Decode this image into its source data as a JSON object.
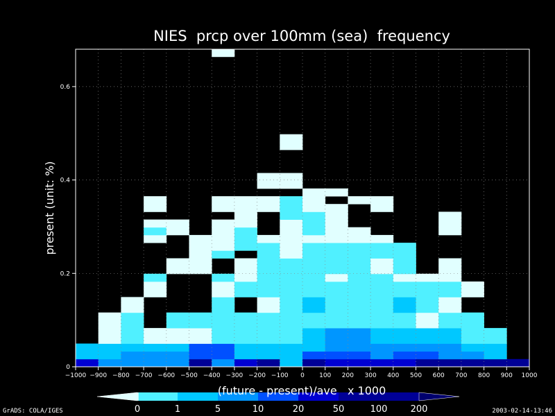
{
  "chart_data": {
    "type": "heatmap",
    "title": "NIES  prcp over 100mm (sea)  frequency",
    "xlabel": "(future - present)/ave   x 1000",
    "ylabel": "present (unit: %)",
    "xlim": [
      -1000,
      1000
    ],
    "ylim": [
      0,
      0.68
    ],
    "x_bin_width": 100,
    "y_bin_width": 0.0166,
    "x_ticks": [
      -1000,
      -900,
      -800,
      -700,
      -600,
      -500,
      -400,
      -300,
      -200,
      -100,
      0,
      100,
      200,
      300,
      400,
      500,
      600,
      700,
      800,
      900,
      1000
    ],
    "y_ticks": [
      0,
      0.2,
      0.4,
      0.6
    ],
    "y_tick_labels": [
      "0",
      "0.2",
      "0.4",
      "0.6"
    ],
    "grid": true,
    "legend": {
      "position": "bottom",
      "boundaries": [
        "0",
        "1",
        "5",
        "10",
        "20",
        "50",
        "100",
        "200"
      ],
      "colors": [
        "#e1ffff",
        "#50f0ff",
        "#00c8ff",
        "#0096ff",
        "#0050ff",
        "#0000d2",
        "#000096",
        "#00006e"
      ]
    },
    "cells": [
      [
        -1000,
        0,
        5
      ],
      [
        -900,
        0,
        3
      ],
      [
        -800,
        0,
        3
      ],
      [
        -700,
        0,
        3
      ],
      [
        -600,
        0,
        3
      ],
      [
        -500,
        0,
        6
      ],
      [
        -400,
        0,
        3
      ],
      [
        -300,
        0,
        5
      ],
      [
        -200,
        0,
        6
      ],
      [
        -100,
        0,
        2
      ],
      [
        0,
        0,
        6
      ],
      [
        100,
        0,
        5
      ],
      [
        200,
        0,
        5
      ],
      [
        300,
        0,
        5
      ],
      [
        400,
        0,
        5
      ],
      [
        500,
        0,
        6
      ],
      [
        600,
        0,
        6
      ],
      [
        700,
        0,
        6
      ],
      [
        800,
        0,
        6
      ],
      [
        900,
        0,
        6
      ],
      [
        -1000,
        1,
        2
      ],
      [
        -900,
        1,
        2
      ],
      [
        -800,
        1,
        3
      ],
      [
        -700,
        1,
        3
      ],
      [
        -600,
        1,
        3
      ],
      [
        -500,
        1,
        4
      ],
      [
        -400,
        1,
        4
      ],
      [
        -300,
        1,
        2
      ],
      [
        -200,
        1,
        2
      ],
      [
        -100,
        1,
        2
      ],
      [
        0,
        1,
        4
      ],
      [
        100,
        1,
        4
      ],
      [
        200,
        1,
        4
      ],
      [
        300,
        1,
        3
      ],
      [
        400,
        1,
        4
      ],
      [
        500,
        1,
        4
      ],
      [
        600,
        1,
        3
      ],
      [
        700,
        1,
        3
      ],
      [
        800,
        1,
        2
      ],
      [
        -1000,
        2,
        2
      ],
      [
        -900,
        2,
        2
      ],
      [
        -800,
        2,
        2
      ],
      [
        -700,
        2,
        2
      ],
      [
        -600,
        2,
        2
      ],
      [
        -500,
        2,
        4
      ],
      [
        -400,
        2,
        4
      ],
      [
        -300,
        2,
        2
      ],
      [
        -200,
        2,
        2
      ],
      [
        -100,
        2,
        2
      ],
      [
        0,
        2,
        2
      ],
      [
        100,
        2,
        3
      ],
      [
        200,
        2,
        3
      ],
      [
        300,
        2,
        3
      ],
      [
        400,
        2,
        3
      ],
      [
        500,
        2,
        3
      ],
      [
        600,
        2,
        3
      ],
      [
        700,
        2,
        2
      ],
      [
        800,
        2,
        2
      ],
      [
        -900,
        3,
        0
      ],
      [
        -800,
        3,
        1
      ],
      [
        -700,
        3,
        0
      ],
      [
        -600,
        3,
        0
      ],
      [
        -500,
        3,
        0
      ],
      [
        -400,
        3,
        1
      ],
      [
        -300,
        3,
        1
      ],
      [
        -200,
        3,
        1
      ],
      [
        -100,
        3,
        1
      ],
      [
        0,
        3,
        2
      ],
      [
        100,
        3,
        3
      ],
      [
        200,
        3,
        3
      ],
      [
        300,
        3,
        2
      ],
      [
        400,
        3,
        2
      ],
      [
        500,
        3,
        2
      ],
      [
        600,
        3,
        2
      ],
      [
        700,
        3,
        1
      ],
      [
        800,
        3,
        1
      ],
      [
        -900,
        4,
        0
      ],
      [
        -800,
        4,
        1
      ],
      [
        -700,
        4,
        0
      ],
      [
        -600,
        4,
        0
      ],
      [
        -500,
        4,
        0
      ],
      [
        -400,
        4,
        1
      ],
      [
        -300,
        4,
        1
      ],
      [
        -200,
        4,
        1
      ],
      [
        -100,
        4,
        1
      ],
      [
        0,
        4,
        2
      ],
      [
        100,
        4,
        3
      ],
      [
        200,
        4,
        3
      ],
      [
        300,
        4,
        2
      ],
      [
        400,
        4,
        2
      ],
      [
        500,
        4,
        2
      ],
      [
        600,
        4,
        2
      ],
      [
        700,
        4,
        1
      ],
      [
        800,
        4,
        1
      ],
      [
        -900,
        5,
        0
      ],
      [
        -800,
        5,
        1
      ],
      [
        -600,
        5,
        1
      ],
      [
        -500,
        5,
        1
      ],
      [
        -400,
        5,
        1
      ],
      [
        -300,
        5,
        1
      ],
      [
        -200,
        5,
        1
      ],
      [
        -100,
        5,
        1
      ],
      [
        0,
        5,
        1
      ],
      [
        100,
        5,
        1
      ],
      [
        200,
        5,
        1
      ],
      [
        300,
        5,
        1
      ],
      [
        400,
        5,
        1
      ],
      [
        500,
        5,
        0
      ],
      [
        600,
        5,
        1
      ],
      [
        700,
        5,
        1
      ],
      [
        -900,
        6,
        0
      ],
      [
        -800,
        6,
        1
      ],
      [
        -600,
        6,
        1
      ],
      [
        -500,
        6,
        1
      ],
      [
        -400,
        6,
        1
      ],
      [
        -300,
        6,
        1
      ],
      [
        -200,
        6,
        1
      ],
      [
        -100,
        6,
        1
      ],
      [
        0,
        6,
        1
      ],
      [
        100,
        6,
        1
      ],
      [
        200,
        6,
        1
      ],
      [
        300,
        6,
        1
      ],
      [
        400,
        6,
        1
      ],
      [
        500,
        6,
        0
      ],
      [
        600,
        6,
        1
      ],
      [
        700,
        6,
        1
      ],
      [
        -800,
        7,
        0
      ],
      [
        -400,
        7,
        1
      ],
      [
        -200,
        7,
        0
      ],
      [
        -100,
        7,
        1
      ],
      [
        0,
        7,
        2
      ],
      [
        100,
        7,
        1
      ],
      [
        200,
        7,
        1
      ],
      [
        300,
        7,
        1
      ],
      [
        400,
        7,
        2
      ],
      [
        500,
        7,
        1
      ],
      [
        600,
        7,
        0
      ],
      [
        -800,
        8,
        0
      ],
      [
        -400,
        8,
        1
      ],
      [
        -200,
        8,
        0
      ],
      [
        -100,
        8,
        1
      ],
      [
        0,
        8,
        2
      ],
      [
        100,
        8,
        1
      ],
      [
        200,
        8,
        1
      ],
      [
        300,
        8,
        1
      ],
      [
        400,
        8,
        2
      ],
      [
        500,
        8,
        1
      ],
      [
        600,
        8,
        0
      ],
      [
        -700,
        9,
        0
      ],
      [
        -400,
        9,
        0
      ],
      [
        -300,
        9,
        1
      ],
      [
        -200,
        9,
        1
      ],
      [
        -100,
        9,
        1
      ],
      [
        0,
        9,
        1
      ],
      [
        100,
        9,
        1
      ],
      [
        200,
        9,
        1
      ],
      [
        300,
        9,
        1
      ],
      [
        400,
        9,
        1
      ],
      [
        500,
        9,
        1
      ],
      [
        600,
        9,
        1
      ],
      [
        700,
        9,
        0
      ],
      [
        -700,
        10,
        0
      ],
      [
        -400,
        10,
        0
      ],
      [
        -300,
        10,
        1
      ],
      [
        -200,
        10,
        1
      ],
      [
        -100,
        10,
        1
      ],
      [
        0,
        10,
        1
      ],
      [
        100,
        10,
        1
      ],
      [
        200,
        10,
        1
      ],
      [
        300,
        10,
        1
      ],
      [
        400,
        10,
        1
      ],
      [
        500,
        10,
        1
      ],
      [
        600,
        10,
        1
      ],
      [
        700,
        10,
        0
      ],
      [
        -700,
        11,
        1
      ],
      [
        -400,
        11,
        1
      ],
      [
        -300,
        11,
        0
      ],
      [
        -200,
        11,
        1
      ],
      [
        -100,
        11,
        1
      ],
      [
        0,
        11,
        1
      ],
      [
        100,
        11,
        0
      ],
      [
        200,
        11,
        1
      ],
      [
        300,
        11,
        1
      ],
      [
        400,
        11,
        0
      ],
      [
        500,
        11,
        0
      ],
      [
        600,
        11,
        0
      ],
      [
        -600,
        12,
        0
      ],
      [
        -500,
        12,
        0
      ],
      [
        -300,
        12,
        0
      ],
      [
        -200,
        12,
        1
      ],
      [
        -100,
        12,
        1
      ],
      [
        0,
        12,
        1
      ],
      [
        100,
        12,
        1
      ],
      [
        200,
        12,
        1
      ],
      [
        300,
        12,
        0
      ],
      [
        400,
        12,
        1
      ],
      [
        600,
        12,
        0
      ],
      [
        -600,
        13,
        0
      ],
      [
        -500,
        13,
        0
      ],
      [
        -300,
        13,
        0
      ],
      [
        -200,
        13,
        1
      ],
      [
        -100,
        13,
        1
      ],
      [
        0,
        13,
        1
      ],
      [
        100,
        13,
        1
      ],
      [
        200,
        13,
        1
      ],
      [
        300,
        13,
        0
      ],
      [
        400,
        13,
        1
      ],
      [
        600,
        13,
        0
      ],
      [
        -500,
        14,
        0
      ],
      [
        -400,
        14,
        1
      ],
      [
        -200,
        14,
        1
      ],
      [
        -100,
        14,
        0
      ],
      [
        0,
        14,
        1
      ],
      [
        100,
        14,
        1
      ],
      [
        200,
        14,
        1
      ],
      [
        300,
        14,
        1
      ],
      [
        400,
        14,
        1
      ],
      [
        -500,
        15,
        0
      ],
      [
        -400,
        15,
        0
      ],
      [
        -300,
        15,
        1
      ],
      [
        -200,
        15,
        1
      ],
      [
        -100,
        15,
        0
      ],
      [
        0,
        15,
        1
      ],
      [
        100,
        15,
        1
      ],
      [
        200,
        15,
        1
      ],
      [
        300,
        15,
        1
      ],
      [
        400,
        15,
        1
      ],
      [
        -700,
        16,
        0
      ],
      [
        -500,
        16,
        0
      ],
      [
        -400,
        16,
        0
      ],
      [
        -300,
        16,
        1
      ],
      [
        -200,
        16,
        0
      ],
      [
        -100,
        16,
        0
      ],
      [
        0,
        16,
        0
      ],
      [
        100,
        16,
        0
      ],
      [
        200,
        16,
        0
      ],
      [
        300,
        16,
        0
      ],
      [
        -700,
        17,
        1
      ],
      [
        -600,
        17,
        0
      ],
      [
        -400,
        17,
        0
      ],
      [
        -300,
        17,
        1
      ],
      [
        -100,
        17,
        0
      ],
      [
        0,
        17,
        1
      ],
      [
        100,
        17,
        0
      ],
      [
        200,
        17,
        0
      ],
      [
        600,
        17,
        0
      ],
      [
        -700,
        18,
        0
      ],
      [
        -600,
        18,
        0
      ],
      [
        -400,
        18,
        0
      ],
      [
        -300,
        18,
        0
      ],
      [
        -100,
        18,
        0
      ],
      [
        0,
        18,
        1
      ],
      [
        100,
        18,
        0
      ],
      [
        600,
        18,
        0
      ],
      [
        -300,
        19,
        0
      ],
      [
        -100,
        19,
        1
      ],
      [
        0,
        19,
        1
      ],
      [
        100,
        19,
        0
      ],
      [
        600,
        19,
        0
      ],
      [
        -700,
        20,
        0
      ],
      [
        -400,
        20,
        0
      ],
      [
        -300,
        20,
        0
      ],
      [
        -200,
        20,
        0
      ],
      [
        -100,
        20,
        1
      ],
      [
        0,
        20,
        0
      ],
      [
        100,
        20,
        0
      ],
      [
        300,
        20,
        0
      ],
      [
        -700,
        21,
        0
      ],
      [
        -400,
        21,
        0
      ],
      [
        -300,
        21,
        0
      ],
      [
        -200,
        21,
        0
      ],
      [
        -100,
        21,
        1
      ],
      [
        0,
        21,
        0
      ],
      [
        200,
        21,
        0
      ],
      [
        300,
        21,
        0
      ],
      [
        0,
        22,
        0
      ],
      [
        100,
        22,
        0
      ],
      [
        -200,
        23,
        0
      ],
      [
        -100,
        23,
        0
      ],
      [
        -200,
        24,
        0
      ],
      [
        -100,
        24,
        0
      ],
      [
        -100,
        28,
        0
      ],
      [
        -100,
        29,
        0
      ],
      [
        -400,
        40,
        0
      ]
    ]
  },
  "footer": {
    "left": "GrADS: COLA/IGES",
    "right": "2003-02-14-13:46"
  }
}
